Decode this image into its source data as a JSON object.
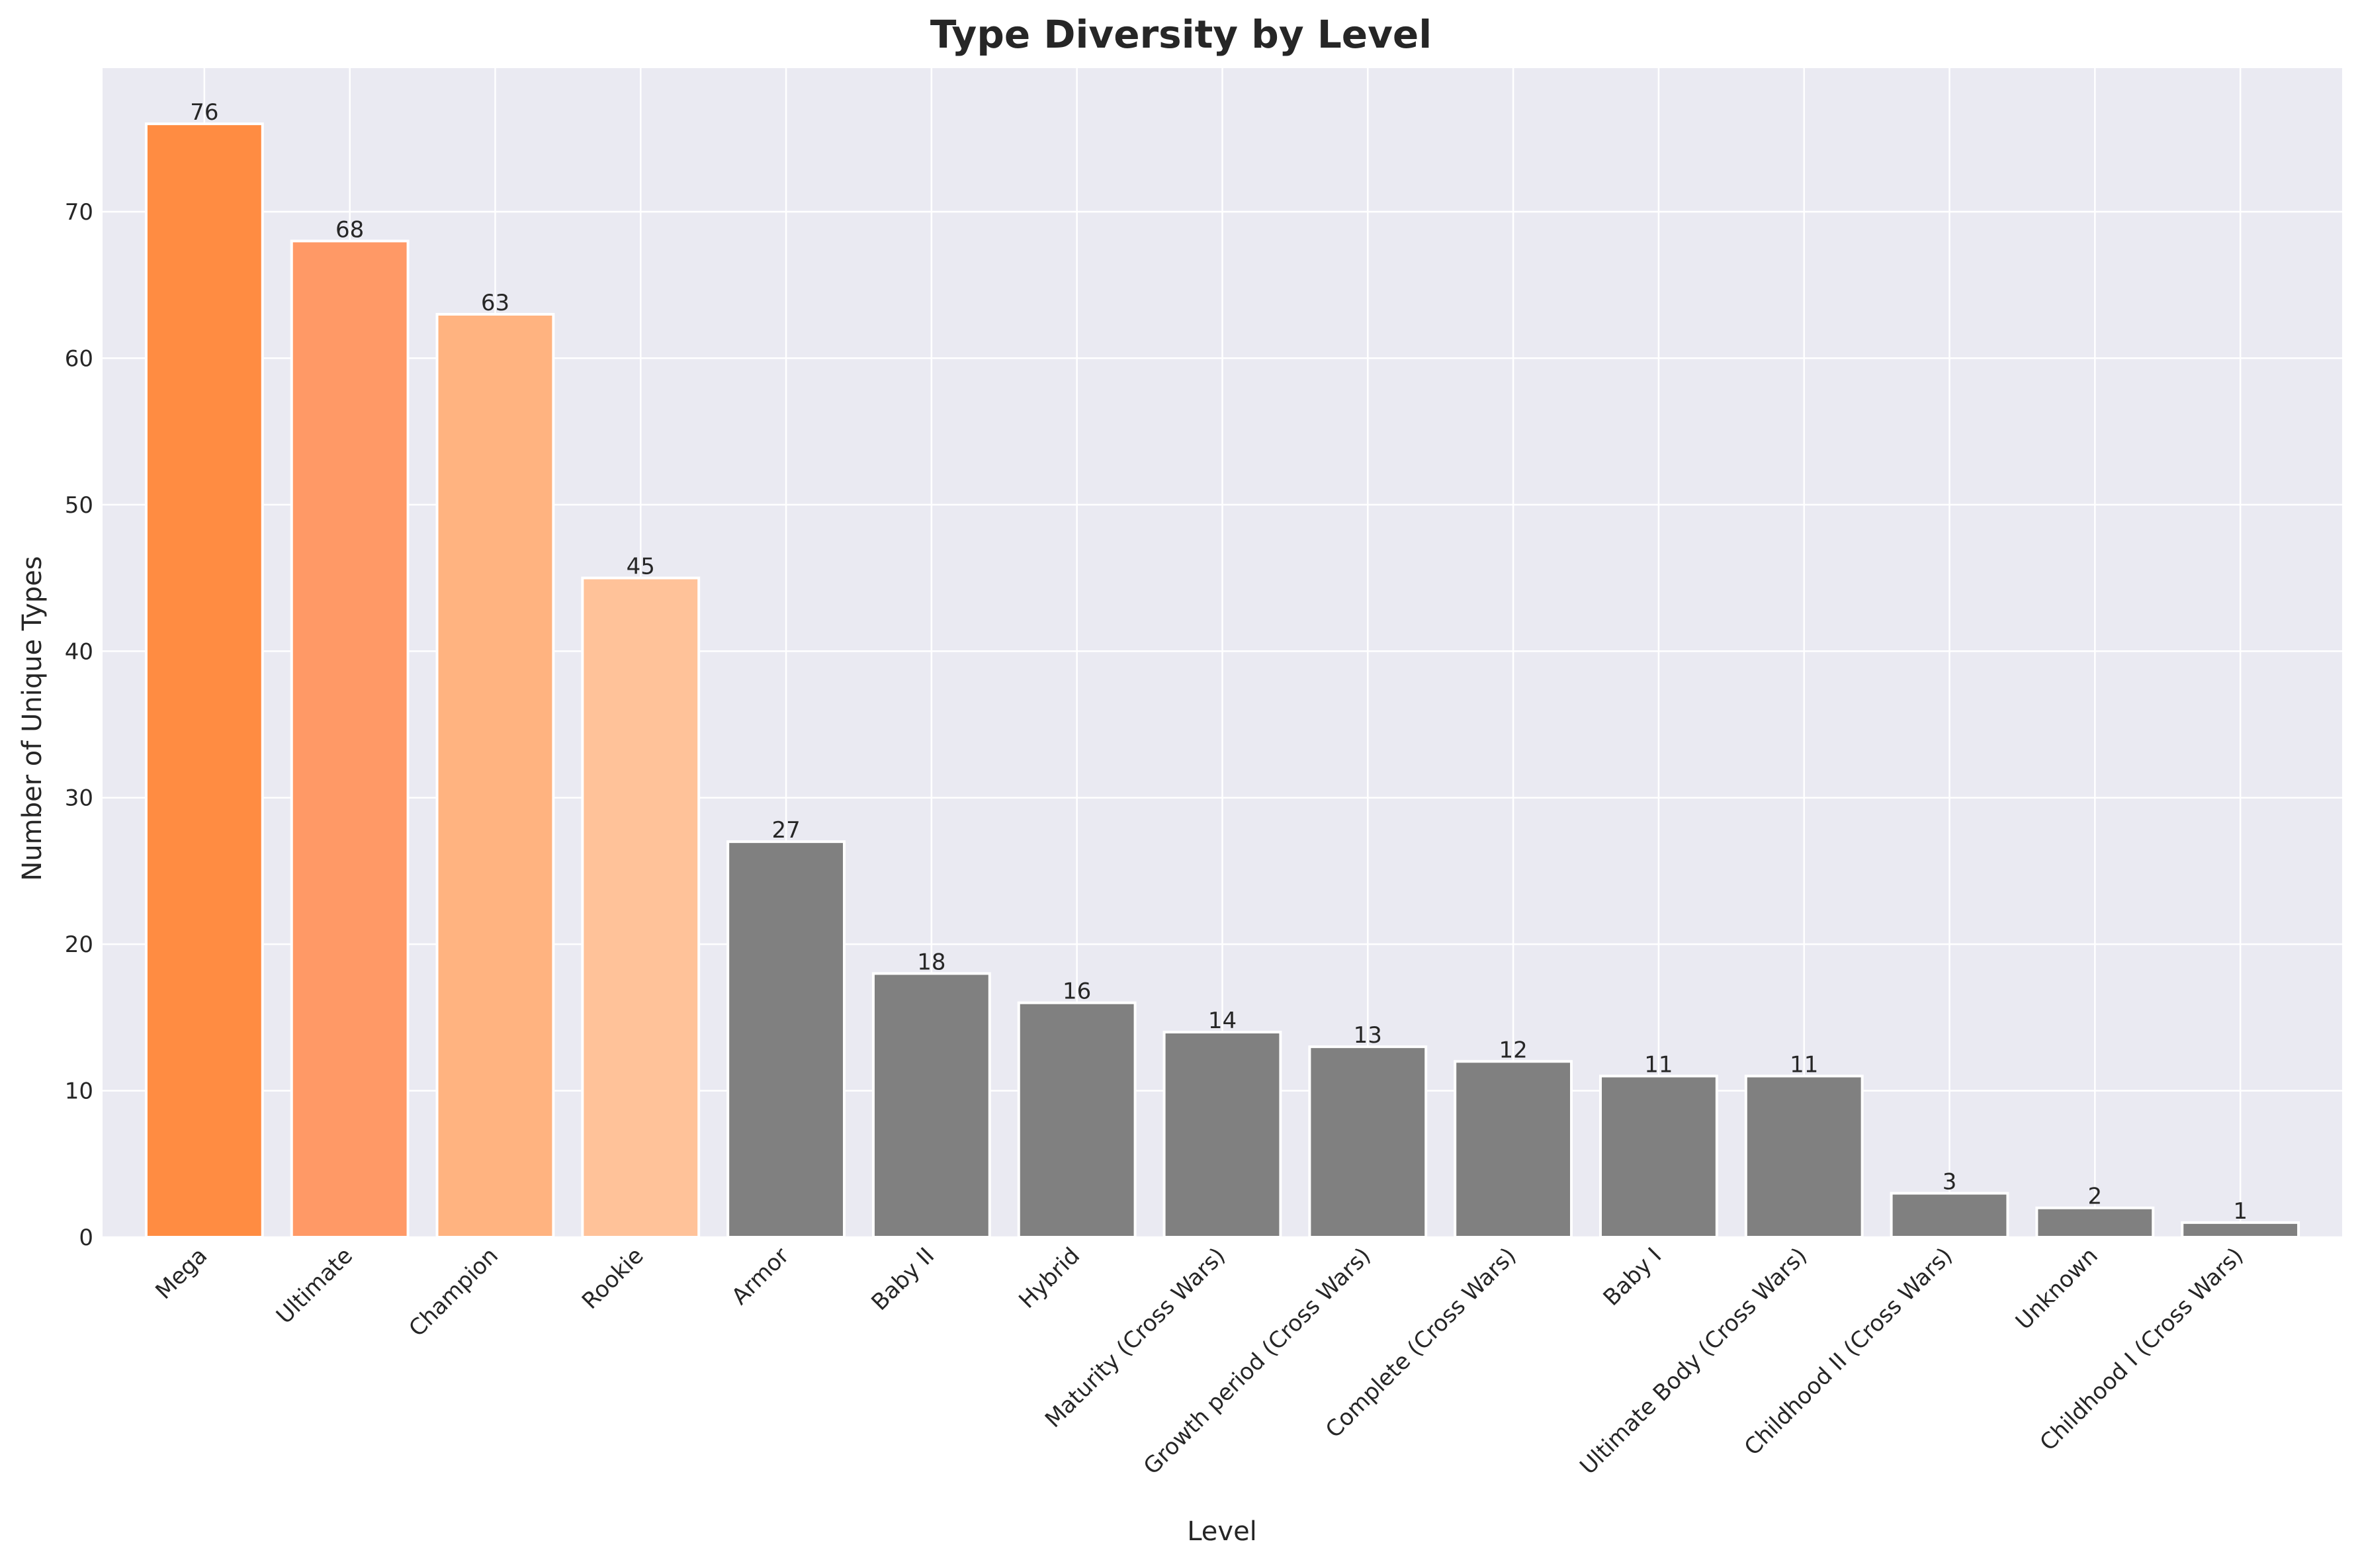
{
  "chart_data": {
    "type": "bar",
    "title": "Type Diversity by Level",
    "xlabel": "Level",
    "ylabel": "Number of Unique Types",
    "ylim": [
      0,
      79.8
    ],
    "yticks": [
      0,
      10,
      20,
      30,
      40,
      50,
      60,
      70
    ],
    "grid": true,
    "categories": [
      "Mega",
      "Ultimate",
      "Champion",
      "Rookie",
      "Armor",
      "Baby II",
      "Hybrid",
      "Maturity (Cross Wars)",
      "Growth period (Cross Wars)",
      "Complete (Cross Wars)",
      "Baby I",
      "Ultimate Body (Cross Wars)",
      "Childhood II (Cross Wars)",
      "Unknown",
      "Childhood I (Cross Wars)"
    ],
    "values": [
      76,
      68,
      63,
      45,
      27,
      18,
      16,
      14,
      13,
      12,
      11,
      11,
      3,
      2,
      1
    ],
    "colors": [
      "#ff8c42",
      "#ff9966",
      "#ffb380",
      "#ffc299",
      "#808080",
      "#808080",
      "#808080",
      "#808080",
      "#808080",
      "#808080",
      "#808080",
      "#808080",
      "#808080",
      "#808080",
      "#808080"
    ],
    "background_color": "#eaeaf2"
  }
}
